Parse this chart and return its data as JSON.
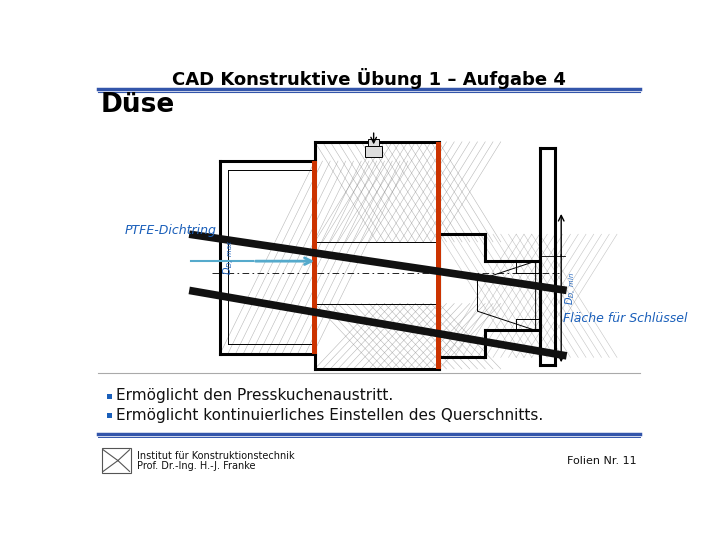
{
  "title": "CAD Konstruktive Übung 1 – Aufgabe 4",
  "subtitle": "Düse",
  "label_ptfe": "PTFE-Dichtring",
  "label_flaeche": "Fläche für Schlüssel",
  "bullet1": "Ermöglicht den Presskuchenaustritt.",
  "bullet2": "Ermöglicht kontinuierliches Einstellen des Querschnitts.",
  "footer_inst": "Institut für Konstruktionstechnik",
  "footer_prof": "Prof. Dr.-Ing. H.-J. Franke",
  "footer_folie": "Folien Nr. 11",
  "bg_color": "#ffffff",
  "title_color": "#000000",
  "subtitle_color": "#000000",
  "label_color": "#1a5fba",
  "bullet_color": "#1a5fba",
  "line_color": "#000000",
  "orange_color": "#cc3300",
  "arrow_color": "#55aacc",
  "header_line_color": "#3355aa",
  "footer_line_color": "#3355aa",
  "hatch_color": "#888888"
}
